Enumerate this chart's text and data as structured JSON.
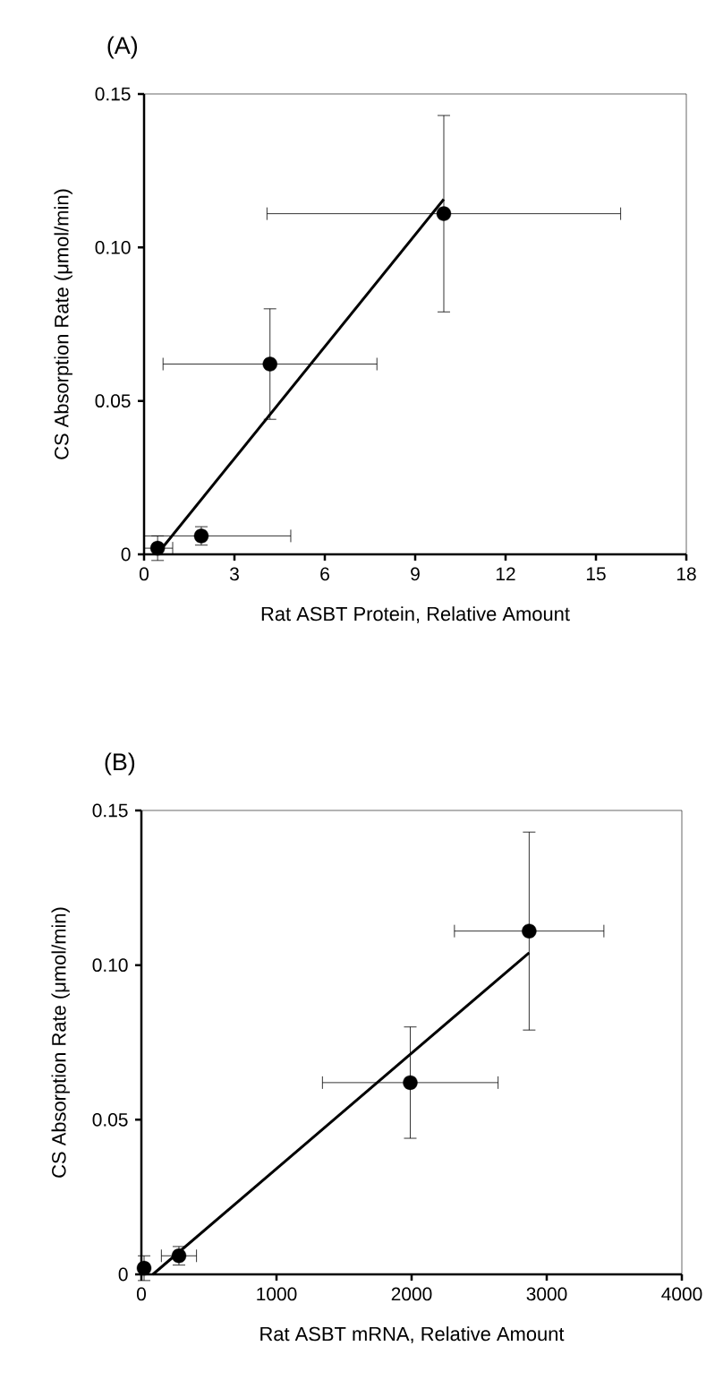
{
  "chart_data": [
    {
      "type": "scatter",
      "title": "(A)",
      "xlabel": "Rat ASBT Protein, Relative Amount",
      "ylabel": "CS Absorption Rate (μmol/min)",
      "xlim": [
        0,
        18
      ],
      "ylim": [
        0,
        0.15
      ],
      "xticks": [
        0,
        3,
        6,
        9,
        12,
        15,
        18
      ],
      "yticks": [
        0,
        0.05,
        {
          "value": 0.1,
          "label": "0.10"
        },
        0.15
      ],
      "grid": false,
      "series": [
        {
          "color": "#000000",
          "marker": "circle",
          "x": [
            0.45,
            1.9,
            4.18,
            9.95
          ],
          "values": [
            0.002,
            0.006,
            0.062,
            0.111
          ],
          "errors": [
            0.004,
            0.003,
            0.018,
            0.032
          ],
          "xerrors": [
            [
              0,
              0.95
            ],
            [
              0,
              4.87
            ],
            3.55,
            5.87
          ]
        },
        {
          "type": "line",
          "color": "#000000",
          "marker": "none",
          "x": [
            0.45,
            9.95
          ],
          "values": [
            0.0002,
            0.1157
          ]
        }
      ]
    },
    {
      "type": "scatter",
      "title": "(B)",
      "xlabel": "Rat ASBT mRNA, Relative Amount",
      "ylabel": "CS Absorption Rate (μmol/min)",
      "xlim": [
        0,
        4000
      ],
      "ylim": [
        0,
        0.15
      ],
      "xticks": [
        0,
        1000,
        2000,
        3000,
        4000
      ],
      "yticks": [
        0,
        0.05,
        {
          "value": 0.1,
          "label": "0.10"
        },
        0.15
      ],
      "grid": false,
      "series": [
        {
          "color": "#000000",
          "marker": "circle",
          "x": [
            20,
            278,
            1990,
            2870
          ],
          "values": [
            0.002,
            0.006,
            0.062,
            0.111
          ],
          "errors": [
            0.004,
            0.003,
            0.018,
            0.032
          ],
          "xerrors": [
            null,
            130,
            650,
            553
          ]
        },
        {
          "type": "line",
          "color": "#000000",
          "marker": "none",
          "x": [
            85,
            2870
          ],
          "values": [
            0,
            0.104
          ]
        }
      ]
    }
  ]
}
